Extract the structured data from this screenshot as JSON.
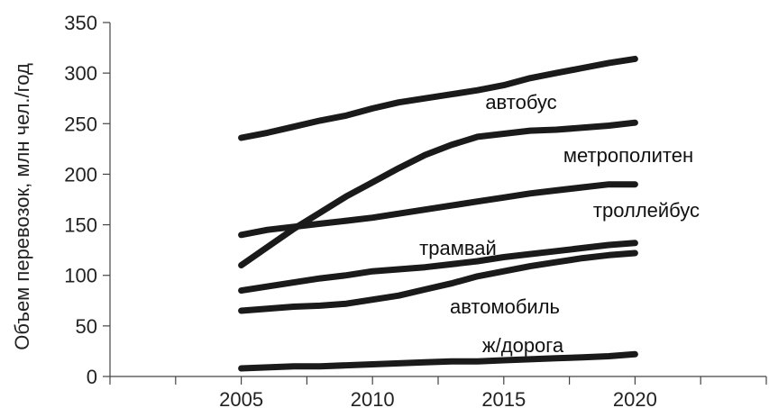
{
  "chart_data": {
    "type": "line",
    "title": "",
    "xlabel": "",
    "ylabel": "Объем перевозок, млн чел./год",
    "xlim": [
      2000,
      2025
    ],
    "ylim": [
      0,
      350
    ],
    "x_ticks": [
      2005,
      2010,
      2015,
      2020
    ],
    "y_ticks": [
      0,
      50,
      100,
      150,
      200,
      250,
      300,
      350
    ],
    "grid": false,
    "legend": "inline labels",
    "line_color": "#1a1a1a",
    "x": [
      2005,
      2006,
      2007,
      2008,
      2009,
      2010,
      2011,
      2012,
      2013,
      2014,
      2015,
      2016,
      2017,
      2018,
      2019,
      2020
    ],
    "series": [
      {
        "name": "автобус",
        "values": [
          236,
          241,
          247,
          253,
          258,
          265,
          271,
          275,
          279,
          283,
          288,
          295,
          300,
          305,
          310,
          314
        ]
      },
      {
        "name": "метрополитен",
        "values": [
          110,
          128,
          146,
          162,
          178,
          192,
          206,
          219,
          229,
          237,
          240,
          243,
          244,
          246,
          248,
          251
        ]
      },
      {
        "name": "троллейбус",
        "values": [
          140,
          145,
          148,
          151,
          154,
          157,
          161,
          165,
          169,
          173,
          177,
          181,
          184,
          187,
          190,
          190
        ]
      },
      {
        "name": "трамвай",
        "values": [
          85,
          89,
          93,
          97,
          100,
          104,
          106,
          108,
          111,
          114,
          118,
          121,
          124,
          127,
          130,
          132
        ]
      },
      {
        "name": "автомобиль",
        "values": [
          65,
          67,
          69,
          70,
          72,
          76,
          80,
          86,
          92,
          99,
          104,
          109,
          113,
          117,
          120,
          122
        ]
      },
      {
        "name": "ж/дорога",
        "values": [
          8,
          9,
          10,
          10,
          11,
          12,
          13,
          14,
          15,
          15,
          16,
          17,
          18,
          19,
          20,
          22
        ]
      }
    ]
  }
}
